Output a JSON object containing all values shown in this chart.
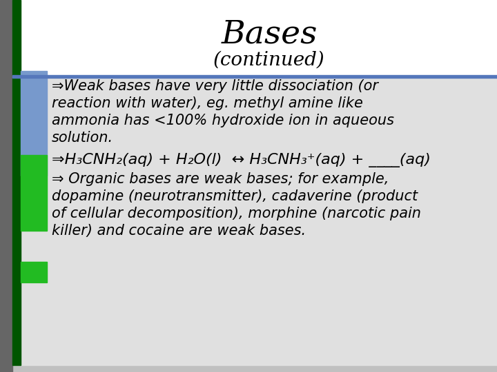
{
  "title": "Bases",
  "subtitle": "(continued)",
  "slide_bg": "#ffffff",
  "outer_bg": "#c0c0c0",
  "title_bg": "#ffffff",
  "content_bg": "#d4d4d4",
  "left_gray_color": "#808080",
  "left_green_color": "#00aa00",
  "left_blue_color": "#6699cc",
  "left_darkgreen_color": "#006600",
  "divider_color": "#5577bb",
  "title_color": "#000000",
  "text_color": "#000000",
  "font_size_title": 34,
  "font_size_subtitle": 20,
  "font_size_body": 15,
  "font_size_eq": 16,
  "bullet1_line1": "⇒Weak bases have very little dissociation (or",
  "bullet1_line2": "reaction with water), eg. methyl amine like",
  "bullet1_line3": "ammonia has <100% hydroxide ion in aqueous",
  "bullet1_line4": "solution.",
  "bullet2": "⇒H₃CNH₂(aq) + H₂O(l)  ↔ H₃CNH₃⁺(aq) + ____(aq)",
  "bullet3_line1": "⇒ Organic bases are weak bases; for example,",
  "bullet3_line2": "dopamine (neurotransmitter), cadaverine (product",
  "bullet3_line3": "of cellular decomposition), morphine (narcotic pain",
  "bullet3_line4": "killer) and cocaine are weak bases."
}
